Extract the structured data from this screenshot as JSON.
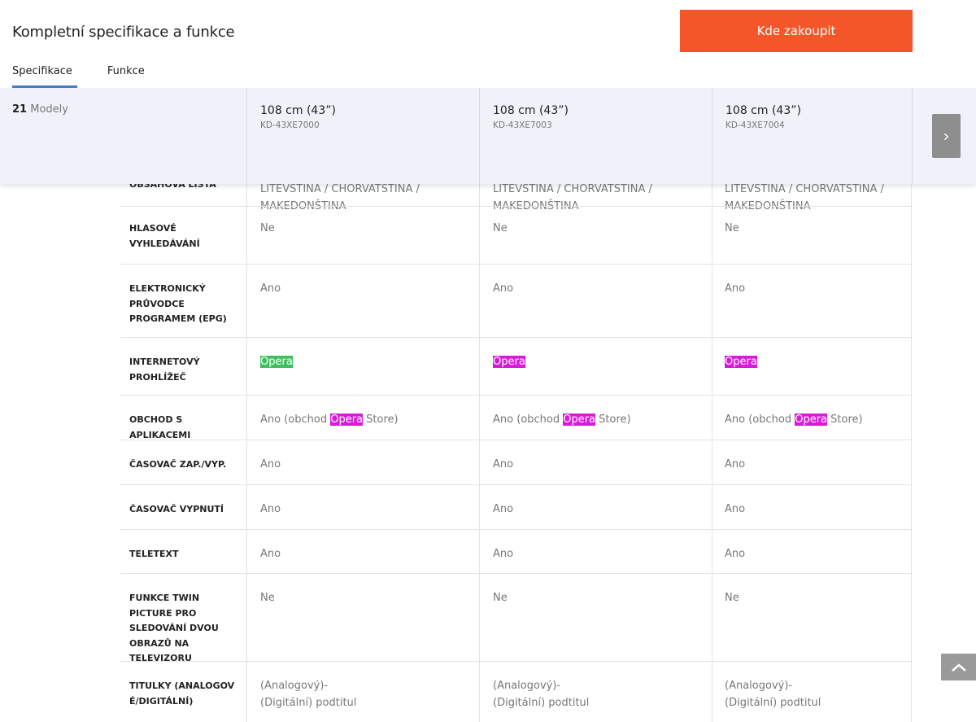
{
  "header": {
    "title": "Kompletní specifikace a funkce",
    "buy_label": "Kde zakoupit"
  },
  "tabs": [
    {
      "label": "Specifikace",
      "active": true
    },
    {
      "label": "Funkce",
      "active": false
    }
  ],
  "models_bar": {
    "count": "21",
    "count_label": "Modely",
    "models": [
      {
        "size": "108 cm (43”)",
        "code": "KD-43XE7000"
      },
      {
        "size": "108 cm (43”)",
        "code": "KD-43XE7003"
      },
      {
        "size": "108 cm (43”)",
        "code": "KD-43XE7004"
      }
    ],
    "next_icon": "chevron-right-icon"
  },
  "rows": [
    {
      "label": "OBSAHOVÁ LIŠTA",
      "values": [
        "LITEVŠTINA / CHORVATŠTINA / MAKEDONŠTINA",
        "LITEVŠTINA / CHORVATŠTINA / MAKEDONŠTINA",
        "LITEVŠTINA / CHORVATŠTINA / MAKEDONŠTINA"
      ]
    },
    {
      "label": "HLASOVÉ VYHLEDÁVÁNÍ",
      "values": [
        "Ne",
        "Ne",
        "Ne"
      ]
    },
    {
      "label": "ELEKTRONICKÝ PRŮVODCE PROGRAMEM (EPG)",
      "values": [
        "Ano",
        "Ano",
        "Ano"
      ]
    },
    {
      "label": "INTERNETOVÝ PROHLÍŽEČ",
      "values": [
        "Opera",
        "Opera",
        "Opera"
      ]
    },
    {
      "label": "OBCHOD S APLIKACEMI",
      "values_prefix": "Ano (obchod ",
      "values_highlight": "Opera",
      "values_suffix": " Store)"
    },
    {
      "label": "ČASOVAČ ZAP./VYP.",
      "values": [
        "Ano",
        "Ano",
        "Ano"
      ]
    },
    {
      "label": "ČASOVAČ VYPNUTÍ",
      "values": [
        "Ano",
        "Ano",
        "Ano"
      ]
    },
    {
      "label": "TELETEXT",
      "values": [
        "Ano",
        "Ano",
        "Ano"
      ]
    },
    {
      "label": "FUNKCE TWIN PICTURE PRO SLEDOVÁNÍ DVOU OBRAZŮ NA TELEVIZORU",
      "values": [
        "Ne",
        "Ne",
        "Ne"
      ]
    },
    {
      "label": "TITULKY (ANALOGOVÉ/DIGITÁLNÍ)",
      "values": [
        "(Analogový)- (Digitální) podtitul",
        "(Analogový)- (Digitální) podtitul",
        "(Analogový)- (Digitální) podtitul"
      ]
    }
  ],
  "colors": {
    "accent": "#f4562a",
    "tab_underline": "#4a7bd0",
    "highlight_green": "#3fc060",
    "highlight_magenta": "#d81bd8"
  },
  "back_to_top_icon": "chevron-up-icon"
}
